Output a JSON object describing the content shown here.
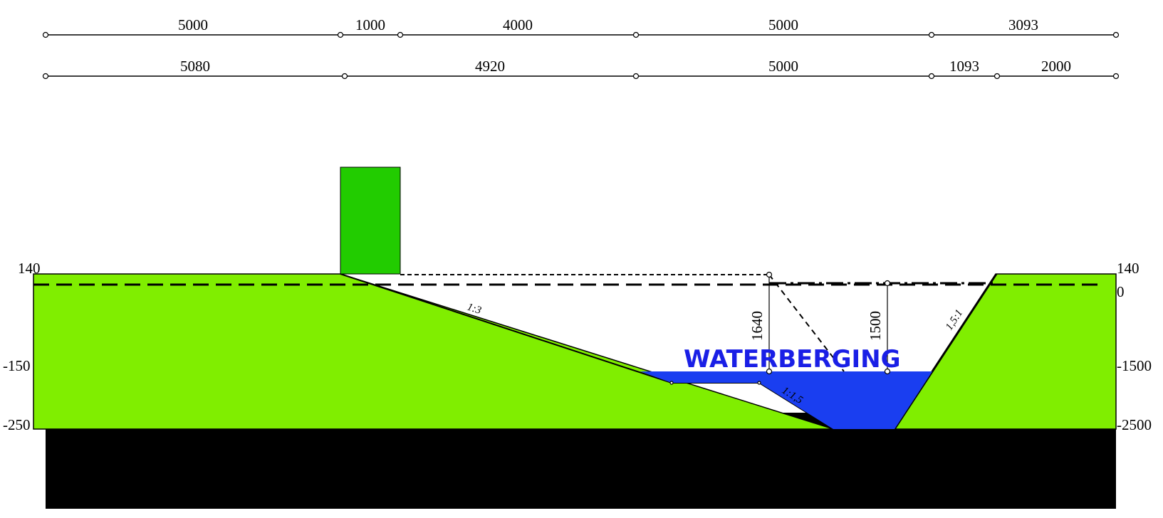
{
  "title": "WATERBERGING",
  "colors": {
    "ground": "#80ee00",
    "wall": "#22cc00",
    "water": "#1a3ef0",
    "base": "#000000",
    "text_blue": "#1a1fe6"
  },
  "dimensions": {
    "top_row": [
      "5000",
      "1000",
      "4000",
      "5000",
      "3093"
    ],
    "second_row": [
      "5080",
      "4920",
      "5000",
      "1093",
      "2000"
    ]
  },
  "levels": {
    "left": [
      "140",
      "-150",
      "-250"
    ],
    "right": [
      "140",
      "0",
      "-1500",
      "-2500"
    ]
  },
  "slopes": [
    "1:3",
    "1:1,5",
    "1,5:1"
  ],
  "heights": [
    "1640",
    "1500"
  ]
}
